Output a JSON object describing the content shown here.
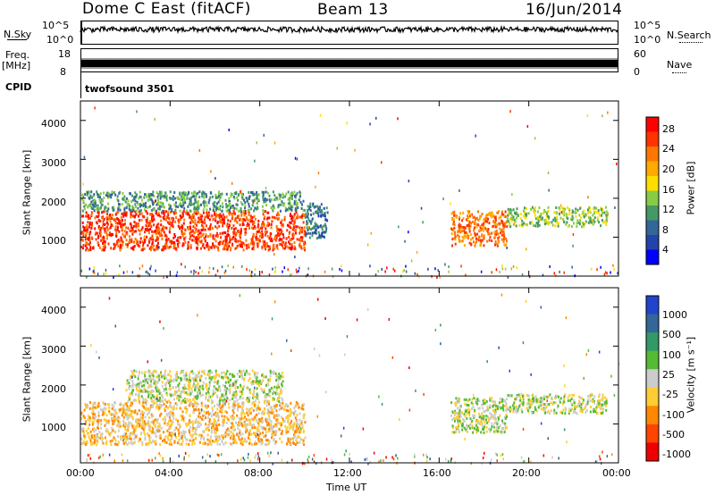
{
  "header": {
    "station": "Dome C East (fitACF)",
    "beam": "Beam 13",
    "date": "16/Jun/2014"
  },
  "top_panels": {
    "nsky_label": "N.Sky",
    "nsky_ticks": [
      "10^5",
      "10^0"
    ],
    "nsearch_label": "N.Search",
    "nsearch_ticks": [
      "10^5",
      "10^0"
    ],
    "freq_label": "Freq.",
    "freq_unit": "[MHz]",
    "freq_ticks": [
      "18",
      "8"
    ],
    "nave_label": "Nave",
    "nave_ticks": [
      "60",
      "0"
    ],
    "cpid_label": "CPID",
    "cpid_value": "twofsound 3501"
  },
  "power_panel": {
    "ylabel": "Slant Range [km]",
    "colorbar_label": "Power [dB]",
    "colorbar_ticks": [
      "28",
      "24",
      "20",
      "16",
      "12",
      "8",
      "4"
    ],
    "colors": [
      "#ff0000",
      "#ff3300",
      "#ff7700",
      "#ffaa00",
      "#ffdd00",
      "#88cc44",
      "#449966",
      "#336699",
      "#2244aa",
      "#0000ff"
    ]
  },
  "velocity_panel": {
    "ylabel": "Slant Range [km]",
    "colorbar_label": "Velocity [m s⁻¹]",
    "colorbar_ticks": [
      "1000",
      "500",
      "100",
      "25",
      "-25",
      "-100",
      "-500",
      "-1000"
    ],
    "colors": [
      "#2244cc",
      "#336699",
      "#339966",
      "#55bb33",
      "#cccccc",
      "#ffcc33",
      "#ff8800",
      "#ff4400",
      "#ee0000"
    ]
  },
  "x_axis": {
    "ticks": [
      "00:00",
      "04:00",
      "08:00",
      "12:00",
      "16:00",
      "20:00",
      "00:00"
    ],
    "label": "Time UT"
  },
  "y_axis": {
    "ticks": [
      "1000",
      "2000",
      "3000",
      "4000"
    ]
  },
  "chart_data": [
    {
      "type": "heatmap",
      "title": "Power [dB]",
      "xlabel": "Time UT",
      "ylabel": "Slant Range [km]",
      "xlim": [
        0,
        24
      ],
      "ylim": [
        0,
        4500
      ],
      "clim": [
        0,
        30
      ],
      "regions": [
        {
          "t_start": 0.0,
          "t_end": 10.0,
          "range_min": 700,
          "range_max": 1700,
          "power": 28
        },
        {
          "t_start": 0.0,
          "t_end": 10.0,
          "range_min": 1700,
          "range_max": 2200,
          "power": 10
        },
        {
          "t_start": 10.0,
          "t_end": 11.0,
          "range_min": 1000,
          "range_max": 1900,
          "power": 8
        },
        {
          "t_start": 16.5,
          "t_end": 19.0,
          "range_min": 800,
          "range_max": 1700,
          "power": 24
        },
        {
          "t_start": 19.0,
          "t_end": 23.5,
          "range_min": 1300,
          "range_max": 1800,
          "power": 12
        }
      ]
    },
    {
      "type": "heatmap",
      "title": "Velocity [m s⁻¹]",
      "xlabel": "Time UT",
      "ylabel": "Slant Range [km]",
      "xlim": [
        0,
        24
      ],
      "ylim": [
        0,
        4500
      ],
      "clim": [
        -1000,
        1000
      ],
      "regions": [
        {
          "t_start": 0.0,
          "t_end": 10.0,
          "range_min": 500,
          "range_max": 1600,
          "velocity": -300
        },
        {
          "t_start": 2.0,
          "t_end": 9.0,
          "range_min": 1600,
          "range_max": 2400,
          "velocity": -100
        },
        {
          "t_start": 16.5,
          "t_end": 19.0,
          "range_min": 800,
          "range_max": 1700,
          "velocity": 100
        },
        {
          "t_start": 19.0,
          "t_end": 23.5,
          "range_min": 1300,
          "range_max": 1800,
          "velocity": 50
        }
      ]
    }
  ]
}
